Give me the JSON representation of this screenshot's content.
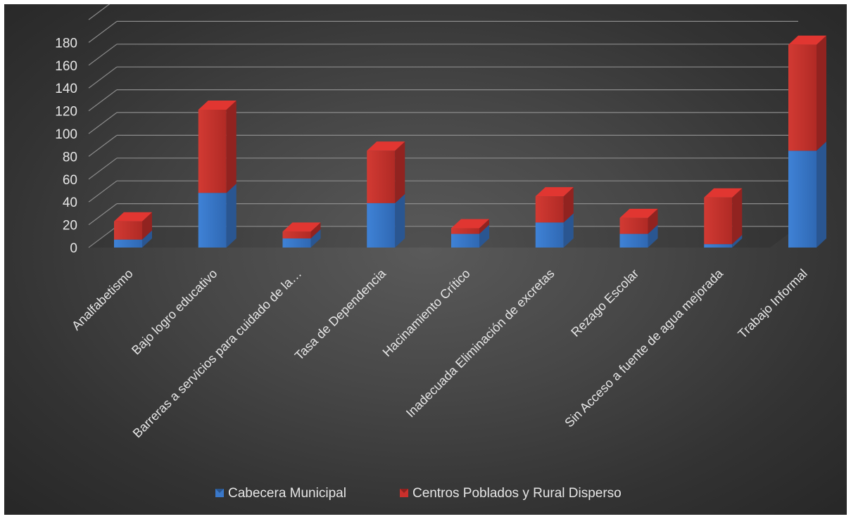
{
  "chart_data": {
    "type": "bar",
    "stacked": true,
    "style": "3d-stacked-column",
    "title": "",
    "xlabel": "",
    "ylabel": "",
    "ylim": [
      0,
      180
    ],
    "yticks": [
      0,
      20,
      40,
      60,
      80,
      100,
      120,
      140,
      160,
      180
    ],
    "grid": true,
    "legend_position": "bottom",
    "categories": [
      "Analfabetismo",
      "Bajo logro educativo",
      "Barreras a servicios para cuidado de la…",
      "Tasa de Dependencia",
      "Hacinamiento Crítico",
      "Inadecuada Eliminación de excretas",
      "Rezago Escolar",
      "Sin Acceso a fuente de agua mejorada",
      "Trabajo Informal"
    ],
    "series": [
      {
        "name": "Cabecera Municipal",
        "color": "#3a78c9",
        "values": [
          7,
          48,
          8,
          39,
          12,
          22,
          12,
          3,
          85
        ]
      },
      {
        "name": "Centros Poblados y Rural Disperso",
        "color": "#c9302c",
        "values": [
          16,
          73,
          6,
          46,
          5,
          23,
          14,
          41,
          93
        ]
      }
    ]
  }
}
